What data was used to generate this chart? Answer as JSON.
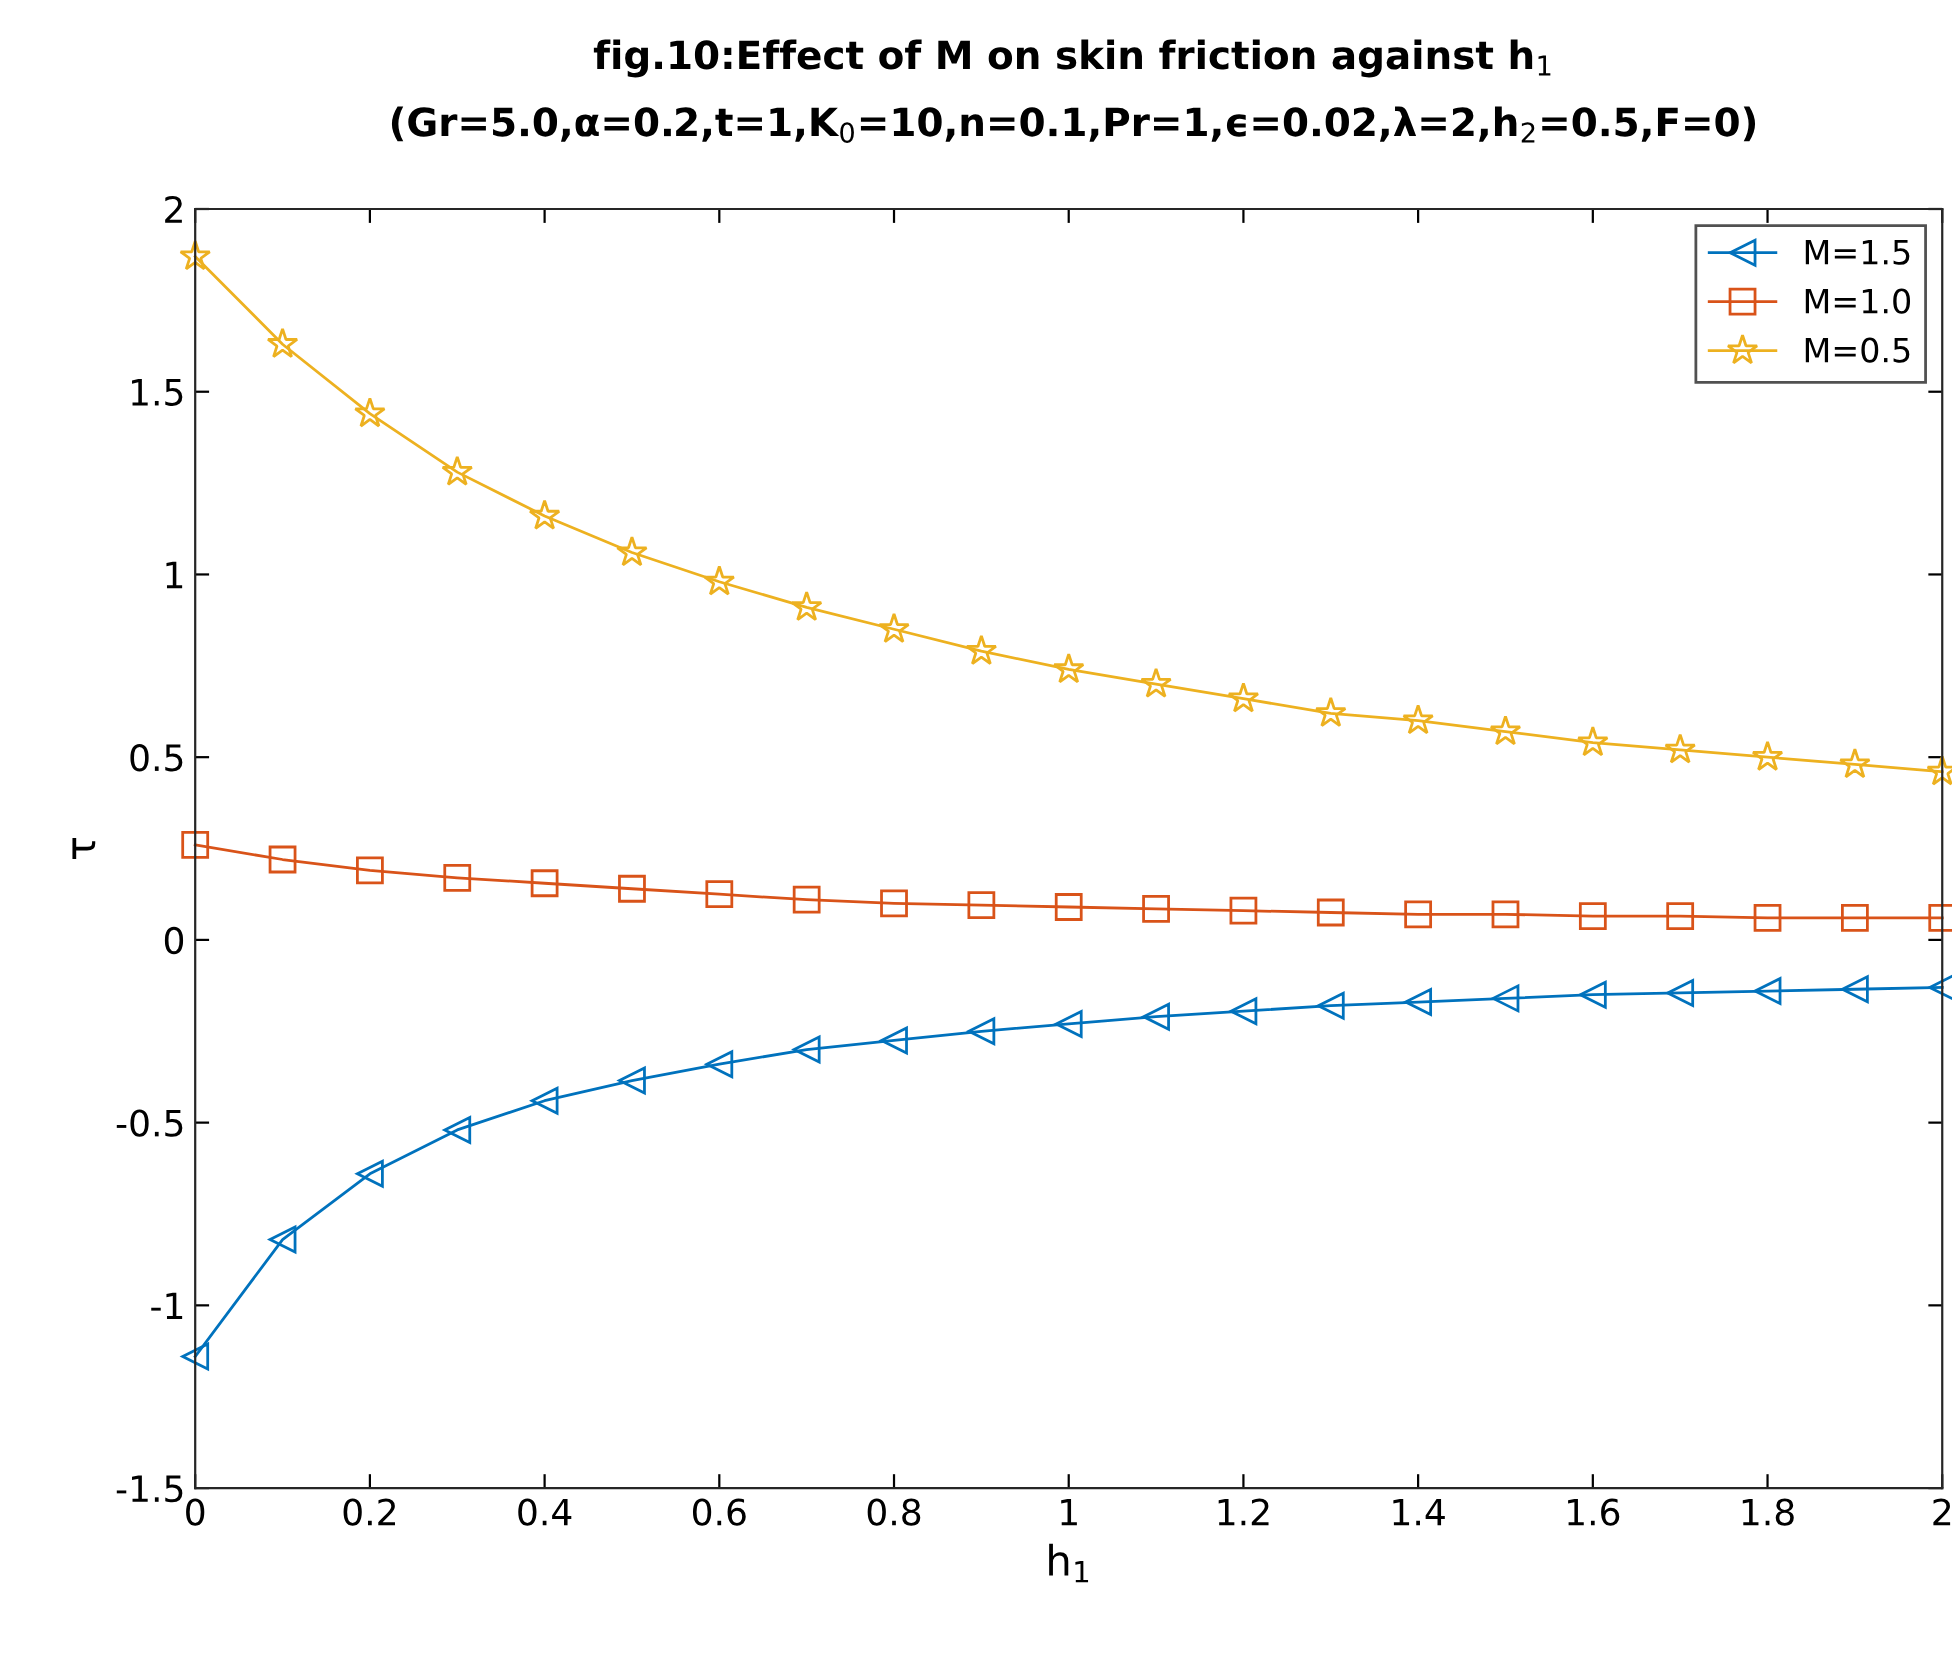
{
  "chart_data": {
    "type": "line",
    "title": "fig.10:Effect of M on skin friction against h$_{1}$",
    "subtitle": "(Gr=5.0,α=0.2,t=1,K$_{0}$=10,n=0.1,Pr=1,ϵ=0.02,λ=2,h$_{2}$=0.5,F=0)",
    "xlabel": "h$_{1}$",
    "ylabel": "τ",
    "x": [
      0,
      0.1,
      0.2,
      0.3,
      0.4,
      0.5,
      0.6,
      0.7,
      0.8,
      0.9,
      1.0,
      1.1,
      1.2,
      1.3,
      1.4,
      1.5,
      1.6,
      1.7,
      1.8,
      1.9,
      2.0
    ],
    "series": [
      {
        "name": "M=1.5",
        "color": "#0072bd",
        "marker": "triangle",
        "values": [
          -1.14,
          -0.82,
          -0.64,
          -0.52,
          -0.44,
          -0.385,
          -0.34,
          -0.3,
          -0.275,
          -0.25,
          -0.23,
          -0.21,
          -0.195,
          -0.18,
          -0.17,
          -0.16,
          -0.15,
          -0.145,
          -0.14,
          -0.135,
          -0.13
        ]
      },
      {
        "name": "M=1.0",
        "color": "#d95319",
        "marker": "square",
        "values": [
          0.26,
          0.22,
          0.19,
          0.17,
          0.155,
          0.14,
          0.125,
          0.11,
          0.1,
          0.095,
          0.09,
          0.085,
          0.08,
          0.075,
          0.07,
          0.07,
          0.065,
          0.065,
          0.06,
          0.06,
          0.06
        ]
      },
      {
        "name": "M=0.5",
        "color": "#edb120",
        "marker": "star",
        "values": [
          1.87,
          1.63,
          1.44,
          1.28,
          1.16,
          1.06,
          0.98,
          0.91,
          0.85,
          0.79,
          0.74,
          0.7,
          0.66,
          0.62,
          0.6,
          0.57,
          0.54,
          0.52,
          0.5,
          0.48,
          0.46
        ]
      }
    ],
    "xlim": [
      0,
      2
    ],
    "xticks": [
      0,
      0.2,
      0.4,
      0.6,
      0.8,
      1,
      1.2,
      1.4,
      1.6,
      1.8,
      2
    ],
    "ylim": [
      -1.5,
      2
    ],
    "yticks": [
      -1.5,
      -1,
      -0.5,
      0,
      0.5,
      1,
      1.5,
      2
    ],
    "grid": false,
    "legend": "top right",
    "line_style": "solid"
  }
}
